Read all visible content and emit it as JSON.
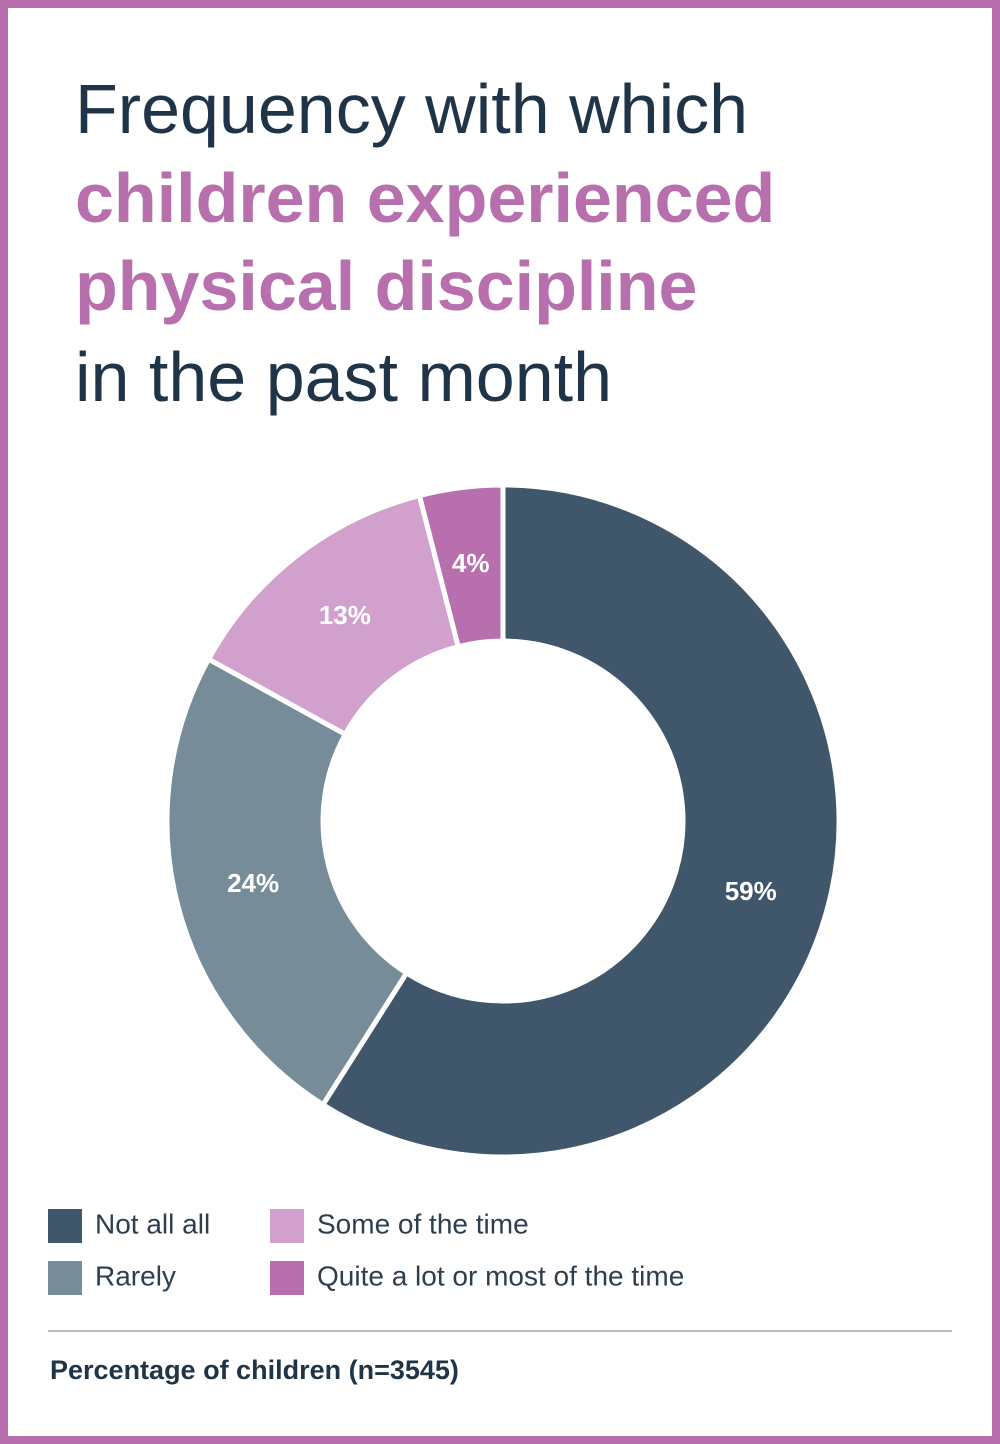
{
  "chart_data": {
    "type": "donut",
    "title": [
      "Frequency with which",
      "children experienced",
      "physical discipline",
      "in the past month"
    ],
    "categories": [
      "Not all all",
      "Rarely",
      "Some of the time",
      "Quite a lot or most of the time"
    ],
    "values": [
      59,
      24,
      13,
      4
    ],
    "value_labels": [
      "59%",
      "24%",
      "13%",
      "4%"
    ],
    "colors": [
      "#3f566b",
      "#768d99",
      "#d2a0cc",
      "#b86fae"
    ],
    "footnote": "Percentage of children (n=3545)"
  }
}
